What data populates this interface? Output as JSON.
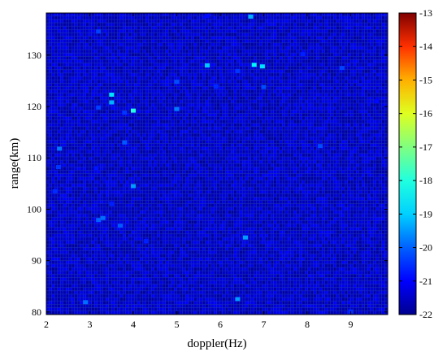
{
  "chart_data": {
    "type": "heatmap",
    "title": "",
    "xlabel": "doppler(Hz)",
    "ylabel": "range(km)",
    "xlim": [
      2,
      9.85
    ],
    "ylim": [
      79.5,
      138.2
    ],
    "x_ticks": [
      2,
      3,
      4,
      5,
      6,
      7,
      8,
      9
    ],
    "y_ticks": [
      80,
      90,
      100,
      110,
      120,
      130
    ],
    "colorbar": {
      "range": [
        -22,
        -13
      ],
      "ticks": [
        -13,
        -14,
        -15,
        -16,
        -17,
        -18,
        -19,
        -20,
        -21,
        -22
      ],
      "colormap": "jet"
    },
    "background_level": -21.3,
    "grid_resolution": {
      "x_cells": 120,
      "y_cells": 90
    },
    "hot_spots": [
      {
        "x": 4.0,
        "y": 119.2,
        "level": -18.3
      },
      {
        "x": 3.5,
        "y": 122.3,
        "level": -18.9
      },
      {
        "x": 3.5,
        "y": 120.8,
        "level": -19.3
      },
      {
        "x": 5.7,
        "y": 128.0,
        "level": -19.1
      },
      {
        "x": 6.78,
        "y": 128.1,
        "level": -18.7
      },
      {
        "x": 6.97,
        "y": 127.8,
        "level": -18.9
      },
      {
        "x": 6.7,
        "y": 137.5,
        "level": -19.3
      },
      {
        "x": 4.0,
        "y": 104.5,
        "level": -19.5
      },
      {
        "x": 6.58,
        "y": 94.5,
        "level": -19.5
      },
      {
        "x": 6.4,
        "y": 82.5,
        "level": -19.5
      },
      {
        "x": 2.3,
        "y": 111.8,
        "level": -19.8
      },
      {
        "x": 5.0,
        "y": 119.5,
        "level": -19.8
      },
      {
        "x": 3.3,
        "y": 98.3,
        "level": -19.9
      },
      {
        "x": 3.2,
        "y": 97.9,
        "level": -20.0
      },
      {
        "x": 2.9,
        "y": 81.9,
        "level": -19.9
      },
      {
        "x": 3.7,
        "y": 96.8,
        "level": -20.1
      },
      {
        "x": 3.8,
        "y": 113.0,
        "level": -20.1
      },
      {
        "x": 7.0,
        "y": 123.8,
        "level": -20.2
      },
      {
        "x": 5.0,
        "y": 124.8,
        "level": -20.2
      },
      {
        "x": 8.3,
        "y": 112.3,
        "level": -20.2
      },
      {
        "x": 3.2,
        "y": 119.8,
        "level": -20.3
      },
      {
        "x": 3.2,
        "y": 134.6,
        "level": -20.3
      },
      {
        "x": 8.8,
        "y": 127.5,
        "level": -20.3
      },
      {
        "x": 2.28,
        "y": 108.2,
        "level": -20.4
      },
      {
        "x": 6.4,
        "y": 126.9,
        "level": -20.4
      },
      {
        "x": 3.8,
        "y": 118.8,
        "level": -20.4
      },
      {
        "x": 2.2,
        "y": 103.5,
        "level": -20.5
      },
      {
        "x": 5.9,
        "y": 123.9,
        "level": -20.5
      },
      {
        "x": 7.9,
        "y": 130.2,
        "level": -20.6
      },
      {
        "x": 9.0,
        "y": 80.1,
        "level": -20.5
      },
      {
        "x": 2.0,
        "y": 89.5,
        "level": -20.6
      },
      {
        "x": 4.3,
        "y": 93.8,
        "level": -20.6
      },
      {
        "x": 3.5,
        "y": 101.0,
        "level": -20.6
      },
      {
        "x": 9.6,
        "y": 121.0,
        "level": -20.8
      },
      {
        "x": 5.7,
        "y": 137.6,
        "level": -20.8
      },
      {
        "x": 3.15,
        "y": 108.0,
        "level": -20.7
      }
    ]
  }
}
